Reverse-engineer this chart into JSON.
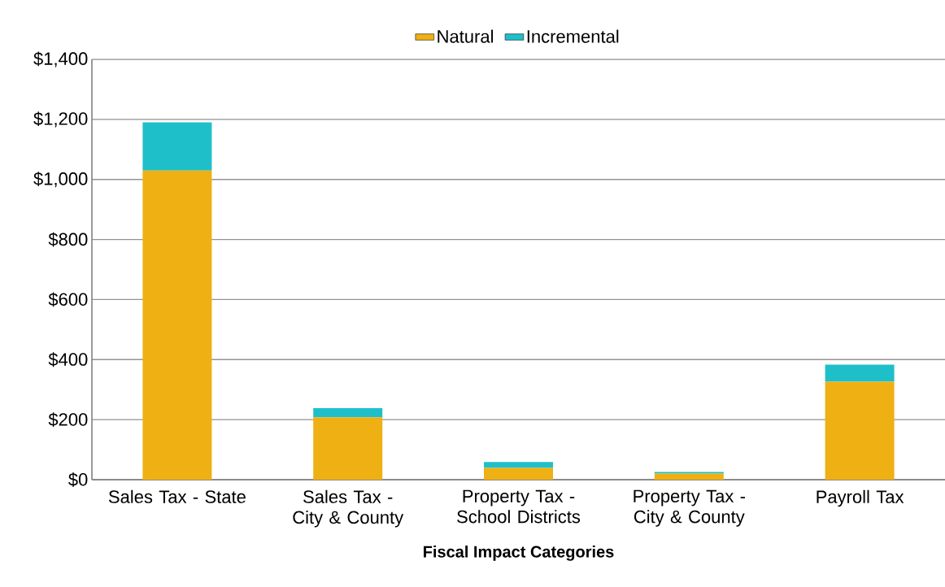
{
  "chart_data": {
    "type": "bar",
    "stacked": true,
    "xlabel": "Fiscal Impact Categories",
    "categories": [
      "Sales Tax - State",
      "Sales Tax - City & County",
      "Property Tax - School Districts",
      "Property Tax - City & County",
      "Payroll Tax"
    ],
    "series": [
      {
        "name": "Natural",
        "color": "#efb014",
        "values": [
          1030,
          208,
          39,
          20,
          326
        ]
      },
      {
        "name": "Incremental",
        "color": "#1fbfca",
        "values": [
          160,
          30,
          20,
          6,
          57
        ]
      }
    ],
    "ylim": [
      0,
      1400
    ],
    "yticks": [
      {
        "value": 0,
        "label": "$0"
      },
      {
        "value": 200,
        "label": "$200"
      },
      {
        "value": 400,
        "label": "$400"
      },
      {
        "value": 600,
        "label": "$600"
      },
      {
        "value": 800,
        "label": "$800"
      },
      {
        "value": 1000,
        "label": "$1,000"
      },
      {
        "value": 1200,
        "label": "$1,200"
      },
      {
        "value": 1400,
        "label": "$1,400"
      }
    ],
    "grid": "y",
    "legend": "top"
  }
}
